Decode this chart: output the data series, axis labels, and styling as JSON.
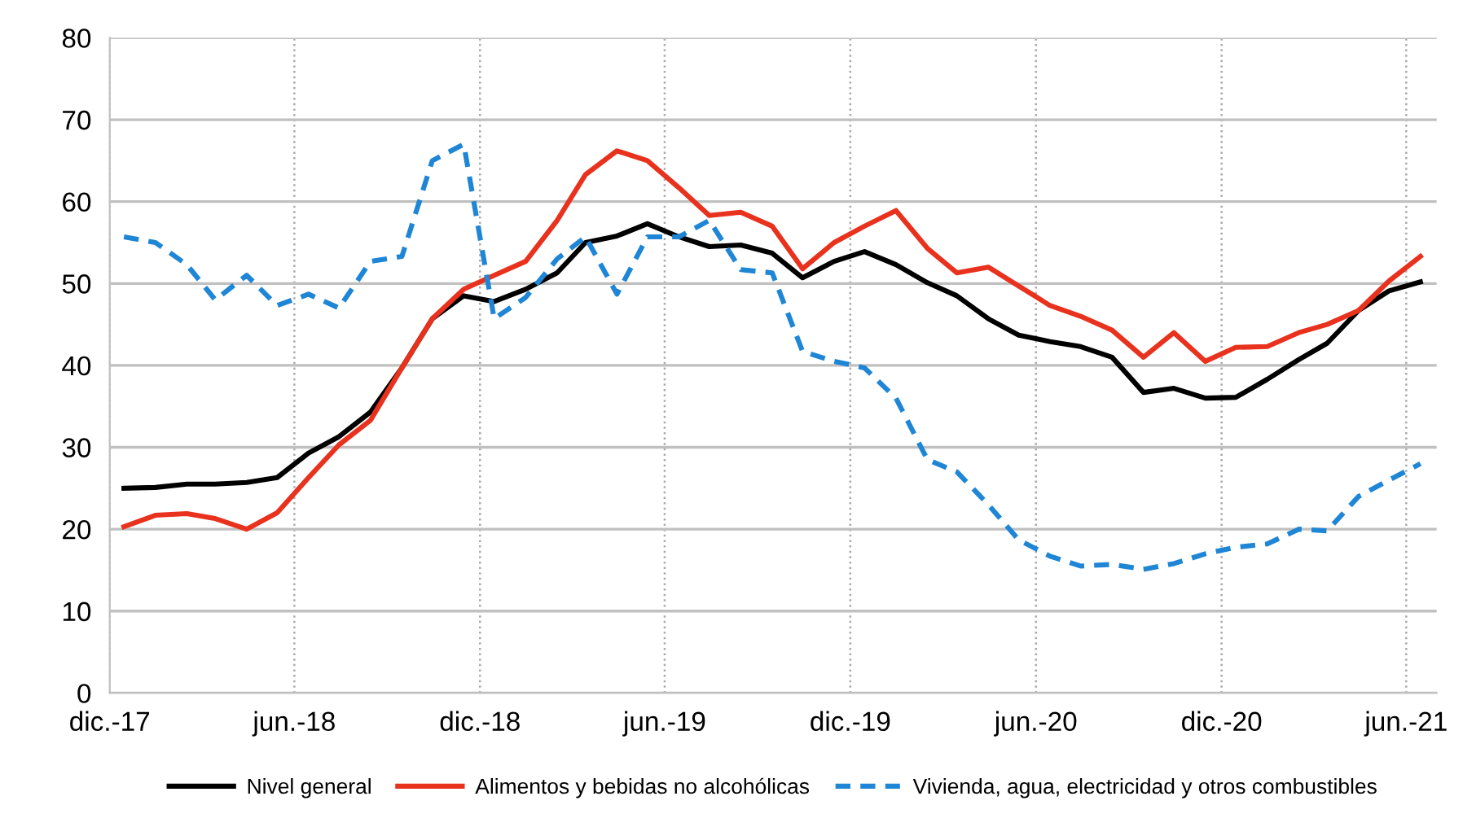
{
  "chart_data": {
    "type": "line",
    "x": [
      "2017-12-15",
      "2018-01-15",
      "2018-02-15",
      "2018-03-15",
      "2018-04-15",
      "2018-05-15",
      "2018-06-15",
      "2018-07-15",
      "2018-08-15",
      "2018-09-15",
      "2018-10-15",
      "2018-11-15",
      "2018-12-15",
      "2019-01-15",
      "2019-02-15",
      "2019-03-15",
      "2019-04-15",
      "2019-05-15",
      "2019-06-15",
      "2019-07-15",
      "2019-08-15",
      "2019-09-15",
      "2019-10-15",
      "2019-11-15",
      "2019-12-15",
      "2020-01-15",
      "2020-02-15",
      "2020-03-15",
      "2020-04-15",
      "2020-05-15",
      "2020-06-15",
      "2020-07-15",
      "2020-08-15",
      "2020-09-15",
      "2020-10-15",
      "2020-11-15",
      "2020-12-15",
      "2021-01-15",
      "2021-02-15",
      "2021-03-15",
      "2021-04-15",
      "2021-05-15",
      "2021-06-15"
    ],
    "series": [
      {
        "name": "Nivel general",
        "color": "#000000",
        "line_style": "solid",
        "values": [
          25.0,
          25.1,
          25.5,
          25.5,
          25.7,
          26.3,
          29.3,
          31.3,
          34.3,
          39.7,
          45.7,
          48.5,
          47.8,
          49.3,
          51.3,
          55.0,
          55.8,
          57.3,
          55.7,
          54.5,
          54.7,
          53.7,
          50.7,
          52.7,
          53.9,
          52.3,
          50.1,
          48.5,
          45.7,
          43.7,
          42.9,
          42.3,
          41.0,
          36.7,
          37.2,
          36.0,
          36.1,
          38.3,
          40.7,
          42.7,
          46.7,
          49.1,
          50.2
        ]
      },
      {
        "name": "Alimentos y bebidas no alcohólicas",
        "color": "#e8321e",
        "line_style": "solid",
        "values": [
          20.3,
          21.7,
          21.9,
          21.3,
          20.0,
          22.0,
          26.3,
          30.3,
          33.3,
          39.7,
          45.7,
          49.3,
          51.0,
          52.7,
          57.7,
          63.3,
          66.2,
          65.0,
          61.7,
          58.3,
          58.7,
          57.0,
          51.8,
          55.0,
          57.0,
          58.9,
          54.3,
          51.3,
          52.0,
          49.7,
          47.3,
          46.0,
          44.3,
          41.0,
          44.0,
          40.5,
          42.2,
          42.3,
          44.0,
          45.0,
          46.7,
          50.3,
          53.3
        ]
      },
      {
        "name": "Vivienda, agua, electricidad y otros combustibles",
        "color": "#1f86d6",
        "line_style": "dashed",
        "values": [
          55.7,
          55.0,
          52.3,
          48.0,
          51.0,
          47.3,
          48.7,
          47.0,
          52.7,
          53.3,
          65.0,
          67.0,
          45.7,
          48.3,
          53.0,
          55.7,
          48.7,
          55.7,
          55.7,
          57.7,
          51.7,
          51.3,
          41.7,
          40.5,
          39.7,
          36.0,
          28.5,
          27.0,
          23.0,
          18.7,
          16.7,
          15.5,
          15.7,
          15.1,
          15.8,
          17.0,
          17.8,
          18.2,
          20.0,
          19.8,
          24.0,
          26.0,
          28.0
        ]
      }
    ],
    "xlim": [
      "2017-12-01",
      "2021-07-01"
    ],
    "xticks": [
      {
        "value": "2017-12-01",
        "label": "dic.-17"
      },
      {
        "value": "2018-06-01",
        "label": "jun.-18"
      },
      {
        "value": "2018-12-01",
        "label": "dic.-18"
      },
      {
        "value": "2019-06-01",
        "label": "jun.-19"
      },
      {
        "value": "2019-12-01",
        "label": "dic.-19"
      },
      {
        "value": "2020-06-01",
        "label": "jun.-20"
      },
      {
        "value": "2020-12-01",
        "label": "dic.-20"
      },
      {
        "value": "2021-06-01",
        "label": "jun.-21"
      }
    ],
    "ylim": [
      0,
      80
    ],
    "yticks": [
      0,
      10,
      20,
      30,
      40,
      50,
      60,
      70,
      80
    ],
    "grid": true,
    "legend": "bottom",
    "marker": "none"
  }
}
